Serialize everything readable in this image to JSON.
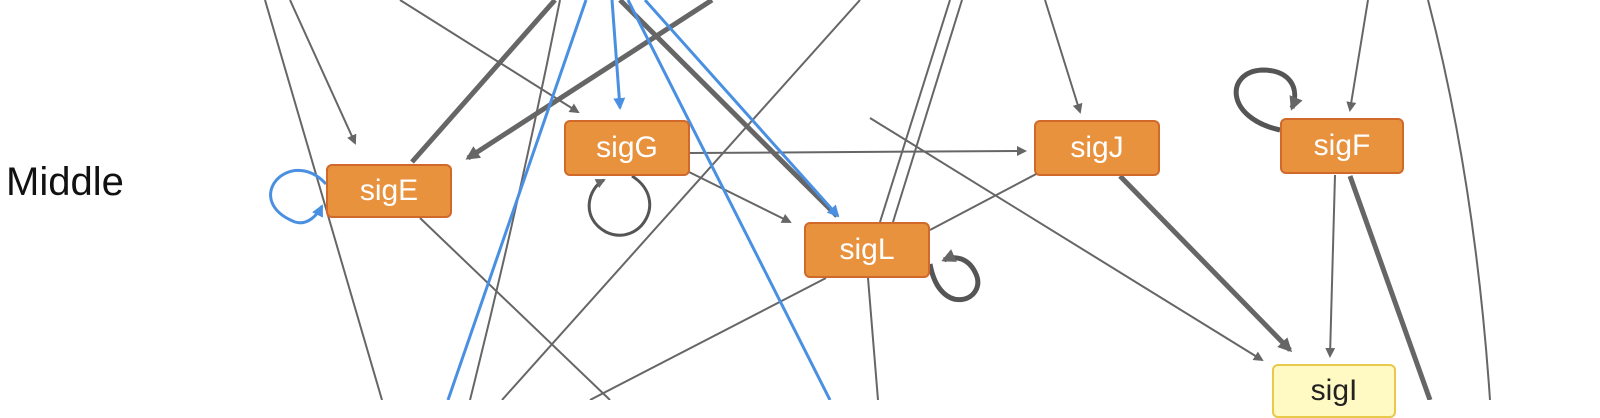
{
  "tier_label": "Middle",
  "nodes": {
    "sigE": "sigE",
    "sigG": "sigG",
    "sigL": "sigL",
    "sigJ": "sigJ",
    "sigF": "sigF",
    "sigI": "sigI"
  },
  "colors": {
    "node_fill": "#e8923e",
    "node_border": "#d0692a",
    "node_light_fill": "#fff9c4",
    "edge_gray": "#666666",
    "edge_blue": "#4a90e2"
  }
}
